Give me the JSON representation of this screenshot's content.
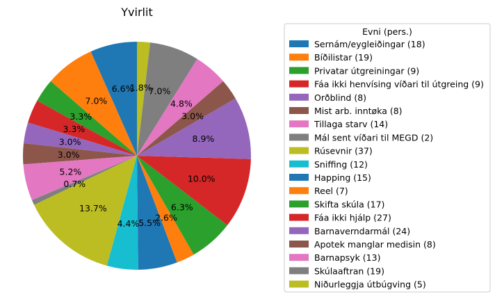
{
  "chart_data": {
    "type": "pie",
    "title": "Yvirlit",
    "legend": {
      "title": "Evni (pers.)",
      "placement": "right"
    },
    "slices": [
      {
        "label": "Sernám/eygleiðingar (18)",
        "value": 18,
        "percent_label": "6.6%",
        "color": "#1f77b4"
      },
      {
        "label": "Bíðilistar (19)",
        "value": 19,
        "percent_label": "7.0%",
        "color": "#ff7f0e"
      },
      {
        "label": "Privatar útgreiningar (9)",
        "value": 9,
        "percent_label": "3.3%",
        "color": "#2ca02c"
      },
      {
        "label": "Fáa ikki henvísing víðari til útgreing (9)",
        "value": 9,
        "percent_label": "3.3%",
        "color": "#d62728"
      },
      {
        "label": "Orðblind (8)",
        "value": 8,
        "percent_label": "3.0%",
        "color": "#9467bd"
      },
      {
        "label": "Mist arb. inntøka (8)",
        "value": 8,
        "percent_label": "3.0%",
        "color": "#8c564b"
      },
      {
        "label": "Tillaga starv (14)",
        "value": 14,
        "percent_label": "5.2%",
        "color": "#e377c2"
      },
      {
        "label": "Mál sent víðari til MEGD (2)",
        "value": 2,
        "percent_label": "0.7%",
        "color": "#7f7f7f"
      },
      {
        "label": "Rúsevnir (37)",
        "value": 37,
        "percent_label": "13.7%",
        "color": "#bcbd22"
      },
      {
        "label": "Sniffing (12)",
        "value": 12,
        "percent_label": "4.4%",
        "color": "#17becf"
      },
      {
        "label": "Happing (15)",
        "value": 15,
        "percent_label": "5.5%",
        "color": "#1f77b4"
      },
      {
        "label": "Reel (7)",
        "value": 7,
        "percent_label": "2.6%",
        "color": "#ff7f0e"
      },
      {
        "label": "Skifta skúla (17)",
        "value": 17,
        "percent_label": "6.3%",
        "color": "#2ca02c"
      },
      {
        "label": "Fáa ikki hjálp (27)",
        "value": 27,
        "percent_label": "10.0%",
        "color": "#d62728"
      },
      {
        "label": "Barnaverndarmál (24)",
        "value": 24,
        "percent_label": "8.9%",
        "color": "#9467bd"
      },
      {
        "label": "Apotek manglar medisin (8)",
        "value": 8,
        "percent_label": "3.0%",
        "color": "#8c564b"
      },
      {
        "label": "Barnapsyk (13)",
        "value": 13,
        "percent_label": "4.8%",
        "color": "#e377c2"
      },
      {
        "label": "Skúlaaftran (19)",
        "value": 19,
        "percent_label": "7.0%",
        "color": "#7f7f7f"
      },
      {
        "label": "Niðurleggja útbúgving (5)",
        "value": 5,
        "percent_label": "1.8%",
        "color": "#bcbd22"
      }
    ],
    "start_angle_deg": 90,
    "direction": "counterclockwise"
  }
}
